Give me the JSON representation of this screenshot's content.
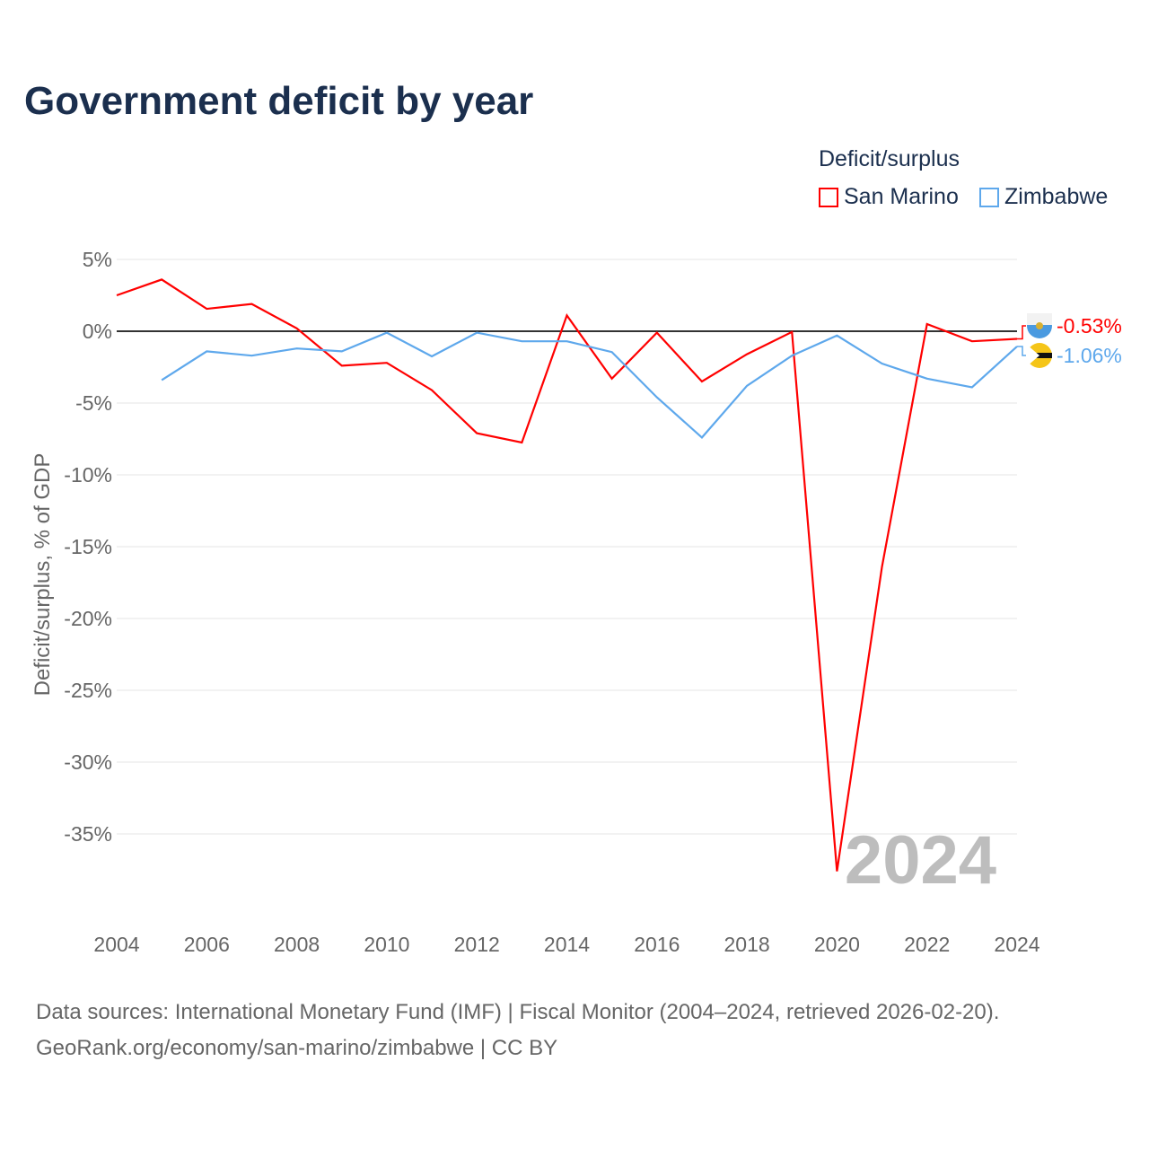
{
  "chart_data": {
    "type": "line",
    "title": "Government deficit by year",
    "ylabel": "Deficit/surplus, % of GDP",
    "xlabel": "",
    "legend_title": "Deficit/surplus",
    "legend_placement": "top-right",
    "ylim": [
      -40,
      5
    ],
    "yticks": [
      5,
      0,
      -5,
      -10,
      -15,
      -20,
      -25,
      -30,
      -35
    ],
    "ytick_labels": [
      "5%",
      "0%",
      "-5%",
      "-10%",
      "-15%",
      "-20%",
      "-25%",
      "-30%",
      "-35%"
    ],
    "xticks": [
      2004,
      2006,
      2008,
      2010,
      2012,
      2014,
      2016,
      2018,
      2020,
      2022,
      2024
    ],
    "xtick_labels": [
      "2004",
      "2006",
      "2008",
      "2010",
      "2012",
      "2014",
      "2016",
      "2018",
      "2020",
      "2022",
      "2024"
    ],
    "watermark_year": "2024",
    "series": [
      {
        "name": "San Marino",
        "color": "#ff0000",
        "end_label": "-0.53%",
        "x": [
          2004,
          2005,
          2006,
          2007,
          2008,
          2009,
          2010,
          2011,
          2012,
          2013,
          2014,
          2015,
          2016,
          2017,
          2018,
          2019,
          2020,
          2021,
          2022,
          2023,
          2024
        ],
        "values": [
          2.5,
          3.6,
          1.56,
          1.9,
          0.2,
          -2.4,
          -2.2,
          -4.1,
          -7.1,
          -7.75,
          1.1,
          -3.3,
          -0.1,
          -3.5,
          -1.6,
          -0.05,
          -37.6,
          -16.4,
          0.5,
          -0.7,
          -0.53
        ]
      },
      {
        "name": "Zimbabwe",
        "color": "#5ea8ec",
        "end_label": "-1.06%",
        "x": [
          2005,
          2006,
          2007,
          2008,
          2009,
          2010,
          2011,
          2012,
          2013,
          2014,
          2015,
          2016,
          2017,
          2018,
          2019,
          2020,
          2021,
          2022,
          2023,
          2024
        ],
        "values": [
          -3.4,
          -1.4,
          -1.7,
          -1.2,
          -1.4,
          -0.1,
          -1.75,
          -0.1,
          -0.7,
          -0.7,
          -1.45,
          -4.6,
          -7.4,
          -3.8,
          -1.7,
          -0.3,
          -2.25,
          -3.3,
          -3.9,
          -1.06
        ]
      }
    ]
  },
  "footer": {
    "line1": "Data sources: International Monetary Fund (IMF) | Fiscal Monitor (2004–2024, retrieved 2026-02-20).",
    "line2": "GeoRank.org/economy/san-marino/zimbabwe | CC BY"
  }
}
